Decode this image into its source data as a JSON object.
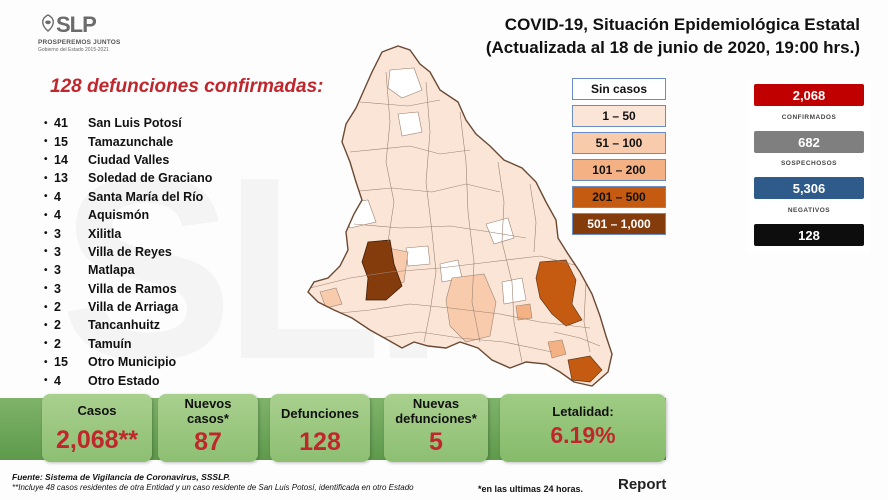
{
  "logo": {
    "mark": "SLP",
    "tagline": "PROSPEREMOS JUNTOS",
    "sub": "Gobierno del Estado 2015-2021"
  },
  "title": {
    "line1": "COVID-19, Situación Epidemiológica Estatal",
    "line2": "(Actualizada al 18 de junio de 2020, 19:00 hrs.)"
  },
  "deaths": {
    "heading": "128 defunciones confirmadas:",
    "items": [
      {
        "count": "41",
        "name": "San Luis Potosí"
      },
      {
        "count": "15",
        "name": "Tamazunchale"
      },
      {
        "count": "14",
        "name": "Ciudad Valles"
      },
      {
        "count": "13",
        "name": "Soledad de Graciano"
      },
      {
        "count": "4",
        "name": "Santa María del Río"
      },
      {
        "count": "4",
        "name": "Aquismón"
      },
      {
        "count": "3",
        "name": "Xilitla"
      },
      {
        "count": "3",
        "name": "Villa de Reyes"
      },
      {
        "count": "3",
        "name": "Matlapa"
      },
      {
        "count": "3",
        "name": "Villa de Ramos"
      },
      {
        "count": "2",
        "name": "Villa de Arriaga"
      },
      {
        "count": "2",
        "name": "Tancanhuitz"
      },
      {
        "count": "2",
        "name": "Tamuín"
      },
      {
        "count": "15",
        "name": "Otro Municipio"
      },
      {
        "count": "4",
        "name": "Otro Estado"
      }
    ]
  },
  "legend": [
    {
      "label": "Sin casos",
      "color": "#ffffff"
    },
    {
      "label": "1 – 50",
      "color": "#fbe5d6"
    },
    {
      "label": "51 – 100",
      "color": "#f8cbad"
    },
    {
      "label": "101 – 200",
      "color": "#f4b183"
    },
    {
      "label": "201 – 500",
      "color": "#c55a11"
    },
    {
      "label": "501 – 1,000",
      "color": "#843c0c"
    }
  ],
  "stats": {
    "confirmed": {
      "value": "2,068",
      "label": "CONFIRMADOS",
      "color": "#c00000"
    },
    "suspected": {
      "value": "682",
      "label": "SOSPECHOSOS",
      "color": "#7f7f7f"
    },
    "negative": {
      "value": "5,306",
      "label": "NEGATIVOS",
      "color": "#2e5b8a"
    },
    "deaths": {
      "value": "128",
      "color": "#0d0d0d"
    }
  },
  "cards": {
    "casos": {
      "label": "Casos",
      "value": "2,068**"
    },
    "nuevos": {
      "label": "Nuevos casos*",
      "value": "87"
    },
    "defunciones": {
      "label": "Defunciones",
      "value": "128"
    },
    "nuevas_def": {
      "label": "Nuevas defunciones*",
      "value": "5"
    },
    "letalidad": {
      "label": "Letalidad:",
      "value": "6.19%"
    }
  },
  "footer": {
    "source": "Fuente: Sistema de Vigilancia de Coronavirus, SSSLP.",
    "note": "**Incluye 48 casos residentes de otra Entidad y un caso residente de San Luis Potosí, identificada en otro Estado",
    "period": "*en las ultimas 24 horas.",
    "report": "Report"
  }
}
